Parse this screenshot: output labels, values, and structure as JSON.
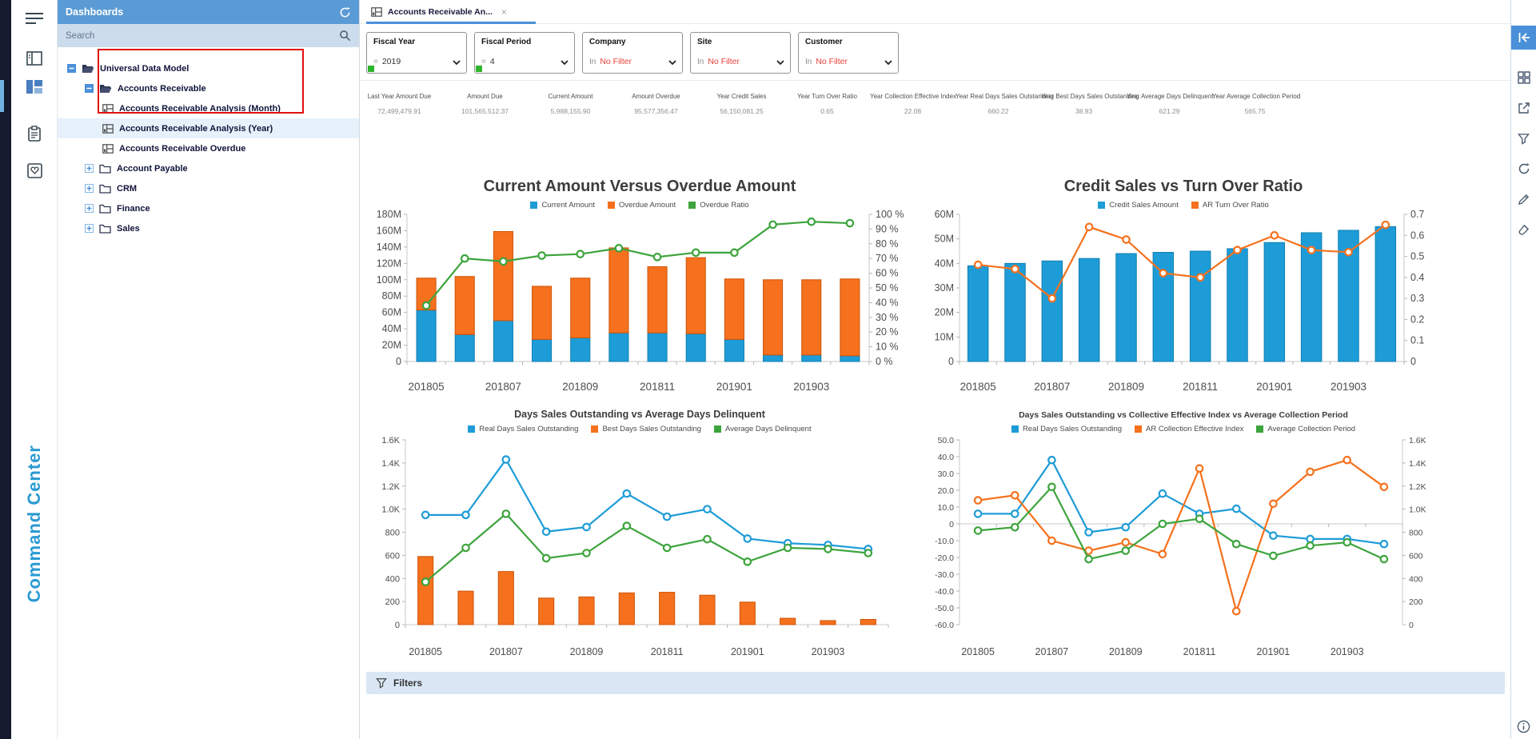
{
  "sidebar": {
    "icons": [
      {
        "name": "hamburger-icon"
      },
      {
        "name": "report-panel-icon"
      },
      {
        "name": "dashboards-icon",
        "active": true
      },
      {
        "name": "clipboard-icon"
      },
      {
        "name": "favorites-icon"
      }
    ],
    "brand_text": "Command Center",
    "accent_color": "#2a9ad2"
  },
  "panel": {
    "title": "Dashboards",
    "search_placeholder": "Search",
    "header_color": "#5b9bd5",
    "tree": [
      {
        "label": "Universal Data Model",
        "level": 0,
        "icon": "folder-open",
        "expander": "minus"
      },
      {
        "label": "Accounts Receivable",
        "level": 1,
        "icon": "folder-open",
        "expander": "minus"
      },
      {
        "label": "Accounts Receivable Analysis (Month)",
        "level": 2,
        "icon": "dashboard-item",
        "in_red_box": true
      },
      {
        "label": "Accounts Receivable Analysis (Year)",
        "level": 2,
        "icon": "dashboard-item",
        "in_red_box": true,
        "selected": true
      },
      {
        "label": "Accounts Receivable Overdue",
        "level": 2,
        "icon": "dashboard-item",
        "in_red_box": true
      },
      {
        "label": "Account Payable",
        "level": 1,
        "icon": "folder",
        "expander": "plus"
      },
      {
        "label": "CRM",
        "level": 1,
        "icon": "folder",
        "expander": "plus"
      },
      {
        "label": "Finance",
        "level": 1,
        "icon": "folder",
        "expander": "plus"
      },
      {
        "label": "Sales",
        "level": 1,
        "icon": "folder",
        "expander": "plus"
      }
    ],
    "red_box_color": "#e11212"
  },
  "tab": {
    "title": "Accounts Receivable An...",
    "close_icon": "×",
    "underline_color": "#4a90d9"
  },
  "filters": [
    {
      "label": "Fiscal Year",
      "op": "=",
      "value": "2019",
      "value_red": false,
      "green_dot": true
    },
    {
      "label": "Fiscal Period",
      "op": "=",
      "value": "4",
      "value_red": false,
      "green_dot": true
    },
    {
      "label": "Company",
      "op": "In",
      "value": "No Filter",
      "value_red": true,
      "green_dot": false
    },
    {
      "label": "Site",
      "op": "In",
      "value": "No Filter",
      "value_red": true,
      "green_dot": false
    },
    {
      "label": "Customer",
      "op": "In",
      "value": "No Filter",
      "value_red": true,
      "green_dot": false
    }
  ],
  "kpis": [
    {
      "label": "Last Year Amount Due",
      "value": "72,499,479.91"
    },
    {
      "label": "Amount Due",
      "value": "101,565,512.37"
    },
    {
      "label": "Current Amount",
      "value": "5,988,155.90"
    },
    {
      "label": "Amount Overdue",
      "value": "95,577,356.47"
    },
    {
      "label": "Year Credit Sales",
      "value": "56,150,081.25"
    },
    {
      "label": "Year Turn Over Ratio",
      "value": "0.65"
    },
    {
      "label": "Year Collection Effective Index",
      "value": "22.08"
    },
    {
      "label": "Year Real Days Sales Outstanding",
      "value": "660.22"
    },
    {
      "label": "Year Best Days Sales Outstanding",
      "value": "38.93"
    },
    {
      "label": "Year Average Days Delinquent",
      "value": "621.29"
    },
    {
      "label": "Year Average Collection Period",
      "value": "565.75"
    }
  ],
  "chart_data": [
    {
      "id": "tl",
      "type": "bar",
      "title": "Current Amount Versus Overdue Amount",
      "legend": [
        {
          "label": "Current Amount",
          "color": "#1e9cd7"
        },
        {
          "label": "Overdue Amount",
          "color": "#f5711d"
        },
        {
          "label": "Overdue Ratio",
          "color": "#3da43d"
        }
      ],
      "categories": [
        "201805",
        "201806",
        "201807",
        "201808",
        "201809",
        "201810",
        "201811",
        "201812",
        "201901",
        "201902",
        "201903",
        "201904"
      ],
      "left_axis": {
        "min": 0,
        "max": 180,
        "ticks": [
          {
            "v": 180,
            "l": "180M"
          },
          {
            "v": 160,
            "l": "160M"
          },
          {
            "v": 140,
            "l": "140M"
          },
          {
            "v": 120,
            "l": "120M"
          },
          {
            "v": 100,
            "l": "100M"
          },
          {
            "v": 80,
            "l": "80M"
          },
          {
            "v": 60,
            "l": "60M"
          },
          {
            "v": 40,
            "l": "40M"
          },
          {
            "v": 20,
            "l": "20M"
          },
          {
            "v": 0,
            "l": "0"
          }
        ]
      },
      "right_axis": {
        "min": 0,
        "max": 100,
        "ticks": [
          {
            "v": 100,
            "l": "100 %"
          },
          {
            "v": 90,
            "l": "90 %"
          },
          {
            "v": 80,
            "l": "80 %"
          },
          {
            "v": 70,
            "l": "70 %"
          },
          {
            "v": 60,
            "l": "60 %"
          },
          {
            "v": 50,
            "l": "50 %"
          },
          {
            "v": 40,
            "l": "40 %"
          },
          {
            "v": 30,
            "l": "30 %"
          },
          {
            "v": 20,
            "l": "20 %"
          },
          {
            "v": 10,
            "l": "10 %"
          },
          {
            "v": 0,
            "l": "0 %"
          }
        ]
      },
      "series": [
        {
          "name": "Current Amount",
          "type": "bar",
          "stack": "a",
          "axis": "left",
          "color": "#1e9cd7",
          "stroke": "#0f7fb2",
          "values": [
            63,
            33,
            50,
            27,
            29,
            35,
            35,
            34,
            27,
            8,
            8,
            7
          ]
        },
        {
          "name": "Overdue Amount",
          "type": "bar",
          "stack": "a",
          "axis": "left",
          "color": "#f5711d",
          "stroke": "#cf5408",
          "values": [
            39,
            71,
            109,
            65,
            73,
            104,
            81,
            93,
            74,
            92,
            92,
            94
          ]
        },
        {
          "name": "Overdue Ratio",
          "type": "line",
          "axis": "right",
          "color": "#3da43d",
          "values": [
            38,
            70,
            68,
            72,
            73,
            77,
            71,
            74,
            74,
            93,
            95,
            94
          ]
        }
      ]
    },
    {
      "id": "tr",
      "type": "bar",
      "title": "Credit Sales vs Turn Over Ratio",
      "legend": [
        {
          "label": "Credit Sales Amount",
          "color": "#1e9cd7"
        },
        {
          "label": "AR Turn Over Ratio",
          "color": "#f5711d"
        }
      ],
      "categories": [
        "201805",
        "201806",
        "201807",
        "201808",
        "201809",
        "201810",
        "201811",
        "201812",
        "201901",
        "201902",
        "201903",
        "201904"
      ],
      "left_axis": {
        "min": 0,
        "max": 60,
        "ticks": [
          {
            "v": 60,
            "l": "60M"
          },
          {
            "v": 50,
            "l": "50M"
          },
          {
            "v": 40,
            "l": "40M"
          },
          {
            "v": 30,
            "l": "30M"
          },
          {
            "v": 20,
            "l": "20M"
          },
          {
            "v": 10,
            "l": "10M"
          },
          {
            "v": 0,
            "l": "0"
          }
        ]
      },
      "right_axis": {
        "min": 0,
        "max": 0.7,
        "ticks": [
          {
            "v": 0.7,
            "l": "0.7"
          },
          {
            "v": 0.6,
            "l": "0.6"
          },
          {
            "v": 0.5,
            "l": "0.5"
          },
          {
            "v": 0.4,
            "l": "0.4"
          },
          {
            "v": 0.3,
            "l": "0.3"
          },
          {
            "v": 0.2,
            "l": "0.2"
          },
          {
            "v": 0.1,
            "l": "0.1"
          },
          {
            "v": 0,
            "l": "0"
          }
        ]
      },
      "series": [
        {
          "name": "Credit Sales Amount",
          "type": "bar",
          "axis": "left",
          "color": "#1e9cd7",
          "stroke": "#0f7fb2",
          "values": [
            39,
            40,
            41,
            42,
            44,
            44.5,
            45,
            46,
            48.5,
            52.5,
            53.5,
            55
          ]
        },
        {
          "name": "AR Turn Over Ratio",
          "type": "line",
          "axis": "right",
          "color": "#f5711d",
          "values": [
            0.46,
            0.44,
            0.3,
            0.64,
            0.58,
            0.42,
            0.4,
            0.53,
            0.6,
            0.53,
            0.52,
            0.65
          ]
        }
      ]
    },
    {
      "id": "bl",
      "type": "line",
      "title": "Days Sales Outstanding vs Average Days Delinquent",
      "legend": [
        {
          "label": "Real Days Sales Outstanding",
          "color": "#1e9cd7"
        },
        {
          "label": "Best Days Sales Outstanding",
          "color": "#f5711d"
        },
        {
          "label": "Average Days Delinquent",
          "color": "#3da43d"
        }
      ],
      "categories": [
        "201805",
        "201806",
        "201807",
        "201808",
        "201809",
        "201810",
        "201811",
        "201812",
        "201901",
        "201902",
        "201903",
        "201904"
      ],
      "left_axis": {
        "min": 0,
        "max": 1600,
        "ticks": [
          {
            "v": 1600,
            "l": "1.6K"
          },
          {
            "v": 1400,
            "l": "1.4K"
          },
          {
            "v": 1200,
            "l": "1.2K"
          },
          {
            "v": 1000,
            "l": "1.0K"
          },
          {
            "v": 800,
            "l": "800"
          },
          {
            "v": 600,
            "l": "600"
          },
          {
            "v": 400,
            "l": "400"
          },
          {
            "v": 200,
            "l": "200"
          },
          {
            "v": 0,
            "l": "0"
          }
        ]
      },
      "right_axis": null,
      "series": [
        {
          "name": "Best Days Sales Outstanding",
          "type": "bar",
          "axis": "left",
          "color": "#f5711d",
          "stroke": "#cf5408",
          "values": [
            590,
            290,
            460,
            230,
            240,
            275,
            280,
            255,
            195,
            55,
            35,
            45
          ]
        },
        {
          "name": "Real Days Sales Outstanding",
          "type": "line",
          "axis": "left",
          "color": "#1e9cd7",
          "values": [
            950,
            950,
            1430,
            805,
            845,
            1135,
            935,
            1000,
            745,
            705,
            690,
            655
          ]
        },
        {
          "name": "Average Days Delinquent",
          "type": "line",
          "axis": "left",
          "color": "#3da43d",
          "values": [
            370,
            665,
            960,
            575,
            620,
            855,
            665,
            740,
            545,
            665,
            655,
            620
          ]
        }
      ]
    },
    {
      "id": "br",
      "type": "line",
      "title": "Days Sales Outstanding vs Collective Effective Index vs Average Collection Period",
      "legend": [
        {
          "label": "Real Days Sales Outstanding",
          "color": "#1e9cd7"
        },
        {
          "label": "AR Collection Effective Index",
          "color": "#f5711d"
        },
        {
          "label": "Average Collection Period",
          "color": "#3da43d"
        }
      ],
      "categories": [
        "201805",
        "201806",
        "201807",
        "201808",
        "201809",
        "201810",
        "201811",
        "201812",
        "201901",
        "201902",
        "201903",
        "201904"
      ],
      "left_axis": {
        "min": -60,
        "max": 50,
        "baseline": 0,
        "ticks": [
          {
            "v": 50,
            "l": "50.0"
          },
          {
            "v": 40,
            "l": "40.0"
          },
          {
            "v": 30,
            "l": "30.0"
          },
          {
            "v": 20,
            "l": "20.0"
          },
          {
            "v": 10,
            "l": "10.0"
          },
          {
            "v": 0,
            "l": "0"
          },
          {
            "v": -10,
            "l": "-10.0"
          },
          {
            "v": -20,
            "l": "-20.0"
          },
          {
            "v": -30,
            "l": "-30.0"
          },
          {
            "v": -40,
            "l": "-40.0"
          },
          {
            "v": -50,
            "l": "-50.0"
          },
          {
            "v": -60,
            "l": "-60.0"
          }
        ]
      },
      "right_axis": {
        "min": 0,
        "max": 1600,
        "ticks": [
          {
            "v": 1600,
            "l": "1.6K"
          },
          {
            "v": 1400,
            "l": "1.4K"
          },
          {
            "v": 1200,
            "l": "1.2K"
          },
          {
            "v": 1000,
            "l": "1.0K"
          },
          {
            "v": 800,
            "l": "800"
          },
          {
            "v": 600,
            "l": "600"
          },
          {
            "v": 400,
            "l": "400"
          },
          {
            "v": 200,
            "l": "200"
          },
          {
            "v": 0,
            "l": "0"
          }
        ]
      },
      "series": [
        {
          "name": "Real Days Sales Outstanding",
          "type": "line",
          "axis": "left",
          "color": "#1e9cd7",
          "values": [
            6,
            6,
            38,
            -5,
            -2,
            18,
            6,
            9,
            -7,
            -9,
            -9,
            -12
          ]
        },
        {
          "name": "AR Collection Effective Index",
          "type": "line",
          "axis": "left",
          "color": "#f5711d",
          "values": [
            14,
            17,
            -10,
            -16,
            -11,
            -18,
            33,
            -52,
            12,
            31,
            38,
            22
          ]
        },
        {
          "name": "Average Collection Period",
          "type": "line",
          "axis": "left",
          "color": "#3da43d",
          "values": [
            -4,
            -2,
            22,
            -21,
            -16,
            0,
            3,
            -12,
            -19,
            -13,
            -11,
            -21
          ]
        }
      ]
    }
  ],
  "filters_bar": {
    "label": "Filters"
  },
  "toolbar": {
    "buttons": [
      {
        "name": "collapse-panel-icon",
        "primary": true
      },
      {
        "name": "dashboard-grid-icon"
      },
      {
        "name": "export-icon"
      },
      {
        "name": "filter-funnel-icon"
      },
      {
        "name": "refresh-icon"
      },
      {
        "name": "edit-pencil-icon"
      },
      {
        "name": "format-brush-icon"
      }
    ],
    "bottom": {
      "name": "info-icon"
    }
  }
}
